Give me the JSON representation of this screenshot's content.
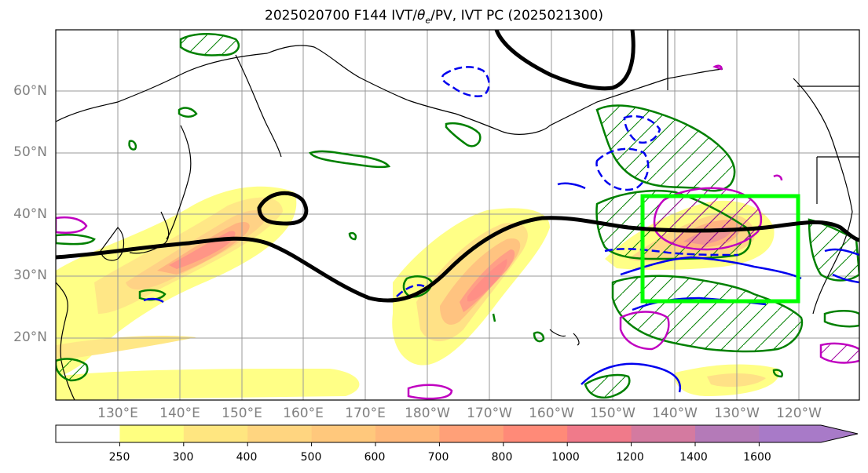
{
  "title_prefix": "2025020700 F144 IVT/",
  "title_theta": "θ",
  "title_sub": "e",
  "title_suffix": "/PV, IVT PC (2025021300)",
  "lat_labels": [
    "60°N",
    "50°N",
    "40°N",
    "30°N",
    "20°N"
  ],
  "lon_labels": [
    "130°E",
    "140°E",
    "150°E",
    "160°E",
    "170°E",
    "180°W",
    "170°W",
    "160°W",
    "150°W",
    "140°W",
    "130°W",
    "120°W"
  ],
  "colorbar": {
    "levels": [
      "250",
      "300",
      "400",
      "500",
      "600",
      "700",
      "800",
      "1000",
      "1200",
      "1400",
      "1600"
    ],
    "colors": [
      "#ffffff",
      "#ffff80",
      "#ffe680",
      "#ffd580",
      "#ffc87c",
      "#ffb87a",
      "#ffa078",
      "#ff8a78",
      "#f07a8a",
      "#d47aa0",
      "#b47ab8",
      "#a87ac8"
    ]
  },
  "colors": {
    "pv_contour": "#008000",
    "theta_cold": "#0000ee",
    "theta_warm": "#c000c0",
    "ivt_pc_box": "#00ff00",
    "jet_line": "#000000"
  }
}
